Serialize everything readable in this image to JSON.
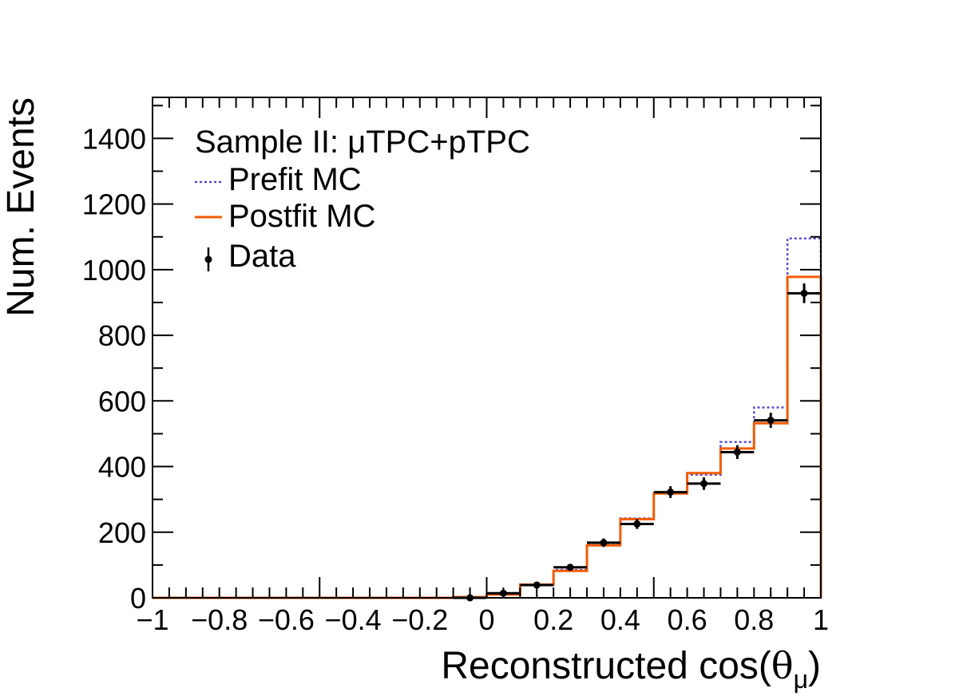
{
  "chart_data": {
    "type": "histogram",
    "title": "",
    "xlabel": "Reconstructed cos(",
    "xlabel_symbol": "θ",
    "xlabel_subscript": "μ",
    "xlabel_close": ")",
    "ylabel": "Num. Events",
    "xlim": [
      -1,
      1
    ],
    "ylim": [
      0,
      1525
    ],
    "x_ticks": [
      -1,
      -0.8,
      -0.6,
      -0.4,
      -0.2,
      0,
      0.2,
      0.4,
      0.6,
      0.8,
      1
    ],
    "x_tick_labels": [
      "−1",
      "−0.8",
      "−0.6",
      "−0.4",
      "−0.2",
      "0",
      "0.2",
      "0.4",
      "0.6",
      "0.8",
      "1"
    ],
    "y_ticks": [
      0,
      200,
      400,
      600,
      800,
      1000,
      1200,
      1400
    ],
    "y_tick_labels": [
      "0",
      "200",
      "400",
      "600",
      "800",
      "1000",
      "1200",
      "1400"
    ],
    "bin_edges": [
      -1,
      -0.9,
      -0.8,
      -0.7,
      -0.6,
      -0.5,
      -0.4,
      -0.3,
      -0.2,
      -0.1,
      0,
      0.1,
      0.2,
      0.3,
      0.4,
      0.5,
      0.6,
      0.7,
      0.8,
      0.9,
      1
    ],
    "legend": {
      "header": "Sample II: μTPC+pTPC",
      "entries": [
        "Prefit MC",
        "Postfit MC",
        "Data"
      ],
      "placement": "top-left"
    },
    "series": [
      {
        "name": "Prefit MC",
        "style": "histogram-dotted",
        "color": "#5b4bd6",
        "values": [
          0,
          0,
          0,
          0,
          0,
          0,
          0,
          0,
          0,
          2,
          12,
          40,
          85,
          162,
          242,
          322,
          375,
          475,
          580,
          1095
        ]
      },
      {
        "name": "Postfit MC",
        "style": "histogram-solid",
        "color": "#f25c05",
        "values": [
          0,
          0,
          0,
          0,
          0,
          0,
          0,
          0,
          0,
          2,
          10,
          40,
          82,
          160,
          240,
          318,
          380,
          455,
          532,
          978
        ]
      },
      {
        "name": "Data",
        "style": "points-with-errors",
        "color": "#000000",
        "values": [
          0,
          0,
          0,
          0,
          0,
          0,
          0,
          0,
          0,
          0,
          14,
          39,
          93,
          168,
          225,
          322,
          348,
          444,
          541,
          928
        ],
        "errors": [
          0,
          0,
          0,
          0,
          0,
          0,
          0,
          0,
          0,
          1,
          4,
          6,
          10,
          13,
          15,
          18,
          19,
          21,
          23,
          30
        ]
      }
    ]
  }
}
